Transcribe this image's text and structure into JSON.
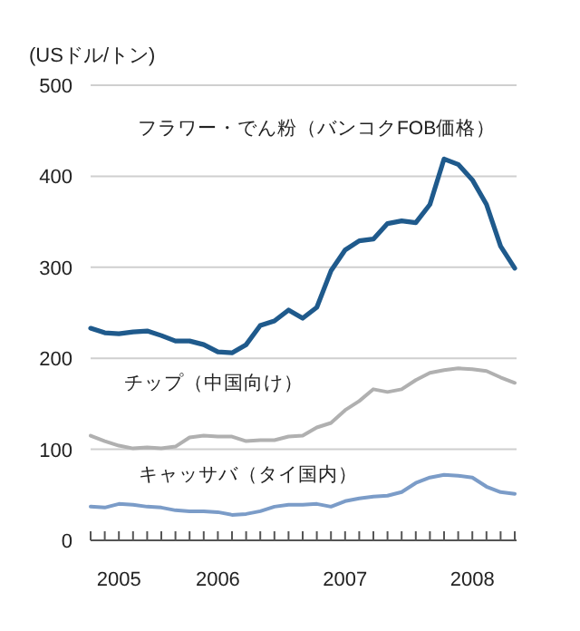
{
  "chart_data": {
    "type": "line",
    "ylabel": "(USドル/トン)",
    "categories": [
      null,
      null,
      "2005",
      null,
      null,
      null,
      null,
      null,
      null,
      "2006",
      null,
      null,
      null,
      null,
      null,
      null,
      null,
      null,
      "2007",
      null,
      null,
      null,
      null,
      null,
      null,
      null,
      null,
      "2008",
      null,
      null,
      null
    ],
    "ylim": [
      0,
      500
    ],
    "yticks": [
      0,
      100,
      200,
      300,
      400,
      500
    ],
    "grid": "y",
    "marker": "none",
    "line_style": "solid",
    "series": [
      {
        "name": "フラワー・でん粉（バンコクFOB価格）",
        "color": "#1f5a8c",
        "values": [
          233,
          228,
          227,
          229,
          230,
          225,
          219,
          219,
          215,
          207,
          206,
          215,
          236,
          241,
          253,
          244,
          256,
          296,
          319,
          329,
          331,
          348,
          351,
          349,
          369,
          419,
          413,
          396,
          369,
          323,
          299
        ]
      },
      {
        "name": "チップ（中国向け）",
        "color": "#b0b0b0",
        "values": [
          115,
          109,
          104,
          101,
          102,
          101,
          103,
          113,
          115,
          114,
          114,
          109,
          110,
          110,
          114,
          115,
          124,
          129,
          143,
          153,
          166,
          163,
          166,
          176,
          184,
          187,
          189,
          188,
          186,
          179,
          173
        ]
      },
      {
        "name": "キャッサバ（タイ国内）",
        "color": "#7b9cc8",
        "values": [
          37,
          36,
          40,
          39,
          37,
          36,
          33,
          32,
          32,
          31,
          28,
          29,
          32,
          37,
          39,
          39,
          40,
          37,
          43,
          46,
          48,
          49,
          53,
          63,
          69,
          72,
          71,
          69,
          59,
          53,
          51
        ]
      }
    ]
  }
}
